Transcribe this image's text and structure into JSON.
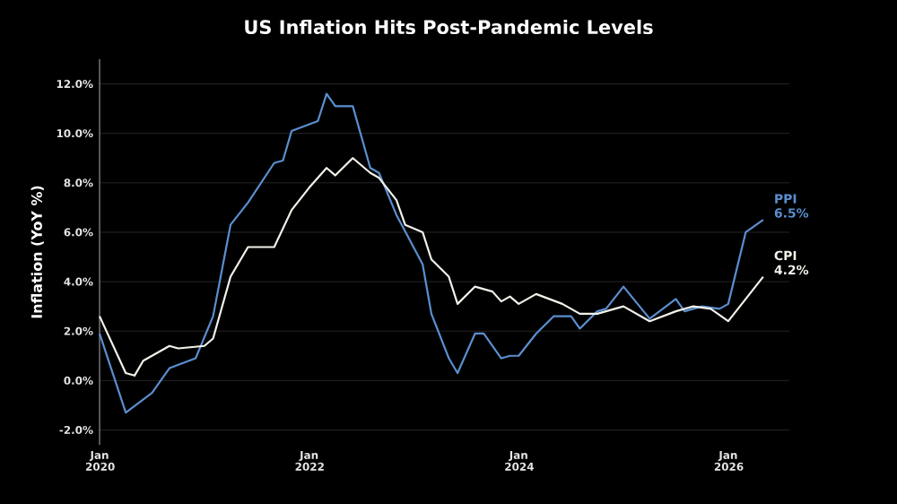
{
  "chart_data": {
    "type": "line",
    "title": "US Inflation Hits Post-Pandemic Levels",
    "ylabel": "Inflation (YoY %)",
    "xlim": [
      "2020-01",
      "2026-08"
    ],
    "ylim": [
      -2.6,
      13
    ],
    "xticks": [
      {
        "value": "2020-01",
        "label": "Jan 2020"
      },
      {
        "value": "2022-01",
        "label": "Jan 2022"
      },
      {
        "value": "2024-01",
        "label": "Jan 2024"
      },
      {
        "value": "2026-01",
        "label": "Jan 2026"
      }
    ],
    "yticks": [
      {
        "value": -2,
        "label": "-2.0%"
      },
      {
        "value": 0,
        "label": "0.0%"
      },
      {
        "value": 2,
        "label": "2.0%"
      },
      {
        "value": 4,
        "label": "4.0%"
      },
      {
        "value": 6,
        "label": "6.0%"
      },
      {
        "value": 8,
        "label": "8.0%"
      },
      {
        "value": 10,
        "label": "10.0%"
      },
      {
        "value": 12,
        "label": "12.0%"
      }
    ],
    "grid": "y",
    "legend": false,
    "line_style": "solid",
    "series": [
      {
        "name": "PPI",
        "color": "#5b8fd0",
        "x": [
          "2020-01",
          "2020-04",
          "2020-07",
          "2020-09",
          "2020-12",
          "2021-02",
          "2021-04",
          "2021-06",
          "2021-09",
          "2021-10",
          "2021-11",
          "2022-02",
          "2022-03",
          "2022-04",
          "2022-06",
          "2022-08",
          "2022-09",
          "2022-11",
          "2023-02",
          "2023-03",
          "2023-05",
          "2023-06",
          "2023-08",
          "2023-09",
          "2023-11",
          "2023-12",
          "2024-01",
          "2024-03",
          "2024-05",
          "2024-07",
          "2024-08",
          "2024-10",
          "2024-11",
          "2025-01",
          "2025-04",
          "2025-07",
          "2025-08",
          "2025-10",
          "2025-12",
          "2026-01",
          "2026-03",
          "2026-05"
        ],
        "values": [
          1.9,
          -1.3,
          -0.5,
          0.5,
          0.9,
          2.6,
          6.3,
          7.2,
          8.8,
          8.9,
          10.1,
          10.5,
          11.6,
          11.1,
          11.1,
          8.6,
          8.4,
          6.7,
          4.7,
          2.7,
          0.9,
          0.3,
          1.9,
          1.9,
          0.9,
          1.0,
          1.0,
          1.9,
          2.6,
          2.6,
          2.1,
          2.8,
          2.9,
          3.8,
          2.5,
          3.3,
          2.8,
          3.0,
          2.9,
          3.1,
          6.0,
          6.5
        ],
        "value_labels": [
          null,
          null,
          null,
          null,
          null,
          null,
          null,
          null,
          null,
          null,
          null,
          null,
          null,
          null,
          null,
          null,
          null,
          null,
          null,
          null,
          null,
          null,
          null,
          null,
          null,
          null,
          null,
          null,
          null,
          null,
          null,
          null,
          null,
          null,
          null,
          null,
          null,
          null,
          null,
          null,
          null,
          "6.5%"
        ]
      },
      {
        "name": "CPI",
        "color": "#f2f2ea",
        "x": [
          "2020-01",
          "2020-04",
          "2020-05",
          "2020-06",
          "2020-09",
          "2020-10",
          "2021-01",
          "2021-02",
          "2021-04",
          "2021-06",
          "2021-09",
          "2021-11",
          "2022-01",
          "2022-03",
          "2022-04",
          "2022-06",
          "2022-08",
          "2022-09",
          "2022-11",
          "2022-12",
          "2023-02",
          "2023-03",
          "2023-05",
          "2023-06",
          "2023-08",
          "2023-10",
          "2023-11",
          "2023-12",
          "2024-01",
          "2024-03",
          "2024-06",
          "2024-08",
          "2024-10",
          "2025-01",
          "2025-04",
          "2025-07",
          "2025-09",
          "2025-11",
          "2026-01",
          "2026-03",
          "2026-05"
        ],
        "values": [
          2.6,
          0.3,
          0.2,
          0.8,
          1.4,
          1.3,
          1.4,
          1.7,
          4.2,
          5.4,
          5.4,
          6.9,
          7.8,
          8.6,
          8.3,
          9.0,
          8.4,
          8.2,
          7.3,
          6.3,
          6.0,
          4.9,
          4.2,
          3.1,
          3.8,
          3.6,
          3.2,
          3.4,
          3.1,
          3.5,
          3.1,
          2.7,
          2.7,
          3.0,
          2.4,
          2.8,
          3.0,
          2.9,
          2.4,
          3.3,
          4.2
        ],
        "value_labels": [
          null,
          null,
          null,
          null,
          null,
          null,
          null,
          null,
          null,
          null,
          null,
          null,
          null,
          null,
          null,
          null,
          null,
          null,
          null,
          null,
          null,
          null,
          null,
          null,
          null,
          null,
          null,
          null,
          null,
          null,
          null,
          null,
          null,
          null,
          null,
          null,
          null,
          null,
          null,
          null,
          "4.2%"
        ]
      }
    ]
  }
}
